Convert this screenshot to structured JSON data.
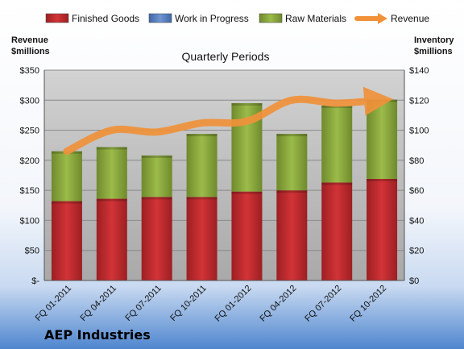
{
  "chart_data": {
    "type": "bar",
    "stacked": true,
    "subtitle": "Quarterly Periods",
    "company": "AEP Industries",
    "left_axis_title": [
      "Revenue",
      "$millions"
    ],
    "right_axis_title": [
      "Inventory",
      "$millions"
    ],
    "categories": [
      "FQ 01-2011",
      "FQ 04-2011",
      "FQ 07-2011",
      "FQ 10-2011",
      "FQ 01-2012",
      "FQ 04-2012",
      "FQ 07-2012",
      "FQ 10-2012"
    ],
    "left_ticks": [
      "$-",
      "$50",
      "$100",
      "$150",
      "$200",
      "$250",
      "$300",
      "$350"
    ],
    "right_ticks": [
      "$0",
      "$20",
      "$40",
      "$60",
      "$80",
      "$100",
      "$120",
      "$140"
    ],
    "ylim_left": [
      0,
      350
    ],
    "ylim_right": [
      0,
      140
    ],
    "series": [
      {
        "name": "Finished Goods",
        "color": "#c0282b",
        "axis": "right",
        "values": [
          52.8,
          54.4,
          55.6,
          55.6,
          59.2,
          60.0,
          65.2,
          67.6
        ]
      },
      {
        "name": "Work in Progress",
        "color": "#5b84c4",
        "axis": "right",
        "values": [
          0,
          0,
          0,
          0,
          0,
          0,
          0,
          0
        ]
      },
      {
        "name": "Raw Materials",
        "color": "#8ead3e",
        "axis": "right",
        "values": [
          33.2,
          34.4,
          27.6,
          42.0,
          58.8,
          37.6,
          51.2,
          52.8
        ]
      },
      {
        "name": "Revenue",
        "color": "#f0923a",
        "axis": "left",
        "type": "line",
        "values": [
          215,
          250,
          247,
          262,
          265,
          300,
          295,
          300
        ]
      }
    ],
    "grid": true,
    "legend_position": "top"
  }
}
